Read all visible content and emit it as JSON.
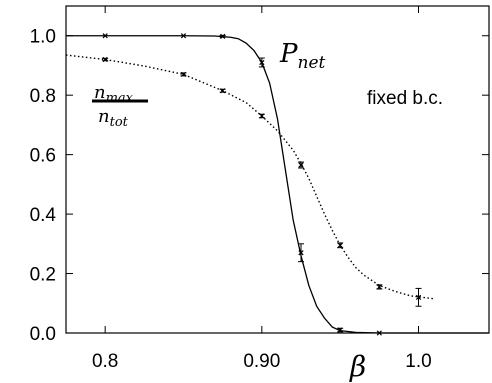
{
  "chart_data": {
    "type": "line",
    "xlabel": "β",
    "xlim": [
      0.775,
      1.045
    ],
    "ylim": [
      0.0,
      1.1
    ],
    "x_ticks": [
      0.8,
      0.9,
      1.0
    ],
    "x_tick_labels": [
      "0.8",
      "0.90",
      "1.0"
    ],
    "y_ticks": [
      0.0,
      0.2,
      0.4,
      0.6,
      0.8,
      1.0
    ],
    "y_tick_labels": [
      "0.0",
      "0.2",
      "0.4",
      "0.6",
      "0.8",
      "1.0"
    ],
    "grid": false,
    "series": [
      {
        "name": "P_net",
        "label_main": "P",
        "label_sub": "net",
        "style": "solid",
        "color": "#000000",
        "points": [
          {
            "x": 0.8,
            "y": 1.0,
            "err": 0.0
          },
          {
            "x": 0.85,
            "y": 1.0,
            "err": 0.0
          },
          {
            "x": 0.875,
            "y": 0.998,
            "err": 0.003
          },
          {
            "x": 0.9,
            "y": 0.91,
            "err": 0.015
          },
          {
            "x": 0.925,
            "y": 0.27,
            "err": 0.03
          },
          {
            "x": 0.95,
            "y": 0.01,
            "err": 0.006
          },
          {
            "x": 0.975,
            "y": 0.0,
            "err": 0.0
          }
        ],
        "curve": [
          [
            0.775,
            1.0
          ],
          [
            0.8,
            1.0
          ],
          [
            0.85,
            1.0
          ],
          [
            0.87,
            0.999
          ],
          [
            0.88,
            0.995
          ],
          [
            0.885,
            0.99
          ],
          [
            0.89,
            0.975
          ],
          [
            0.895,
            0.95
          ],
          [
            0.9,
            0.91
          ],
          [
            0.905,
            0.84
          ],
          [
            0.91,
            0.72
          ],
          [
            0.915,
            0.55
          ],
          [
            0.92,
            0.38
          ],
          [
            0.925,
            0.26
          ],
          [
            0.93,
            0.16
          ],
          [
            0.935,
            0.09
          ],
          [
            0.94,
            0.05
          ],
          [
            0.945,
            0.02
          ],
          [
            0.95,
            0.008
          ],
          [
            0.96,
            0.002
          ],
          [
            0.975,
            0.0
          ],
          [
            1.045,
            0.0
          ]
        ]
      },
      {
        "name": "n_max/n_tot",
        "label_num": "n",
        "label_num_sub": "max",
        "label_den": "n",
        "label_den_sub": "tot",
        "style": "dotted",
        "color": "#000000",
        "points": [
          {
            "x": 0.8,
            "y": 0.92,
            "err": 0.004
          },
          {
            "x": 0.85,
            "y": 0.87,
            "err": 0.005
          },
          {
            "x": 0.875,
            "y": 0.815,
            "err": 0.005
          },
          {
            "x": 0.9,
            "y": 0.73,
            "err": 0.006
          },
          {
            "x": 0.925,
            "y": 0.565,
            "err": 0.01
          },
          {
            "x": 0.95,
            "y": 0.295,
            "err": 0.008
          },
          {
            "x": 0.975,
            "y": 0.155,
            "err": 0.007
          },
          {
            "x": 1.0,
            "y": 0.12,
            "err": 0.03
          }
        ],
        "curve": [
          [
            0.775,
            0.935
          ],
          [
            0.8,
            0.92
          ],
          [
            0.825,
            0.898
          ],
          [
            0.85,
            0.87
          ],
          [
            0.875,
            0.815
          ],
          [
            0.89,
            0.775
          ],
          [
            0.9,
            0.73
          ],
          [
            0.91,
            0.68
          ],
          [
            0.92,
            0.615
          ],
          [
            0.925,
            0.57
          ],
          [
            0.93,
            0.52
          ],
          [
            0.935,
            0.46
          ],
          [
            0.94,
            0.4
          ],
          [
            0.945,
            0.345
          ],
          [
            0.95,
            0.295
          ],
          [
            0.955,
            0.255
          ],
          [
            0.96,
            0.22
          ],
          [
            0.965,
            0.195
          ],
          [
            0.975,
            0.16
          ],
          [
            0.985,
            0.14
          ],
          [
            0.995,
            0.125
          ],
          [
            1.01,
            0.115
          ]
        ]
      }
    ],
    "annotation": "fixed b.c."
  }
}
